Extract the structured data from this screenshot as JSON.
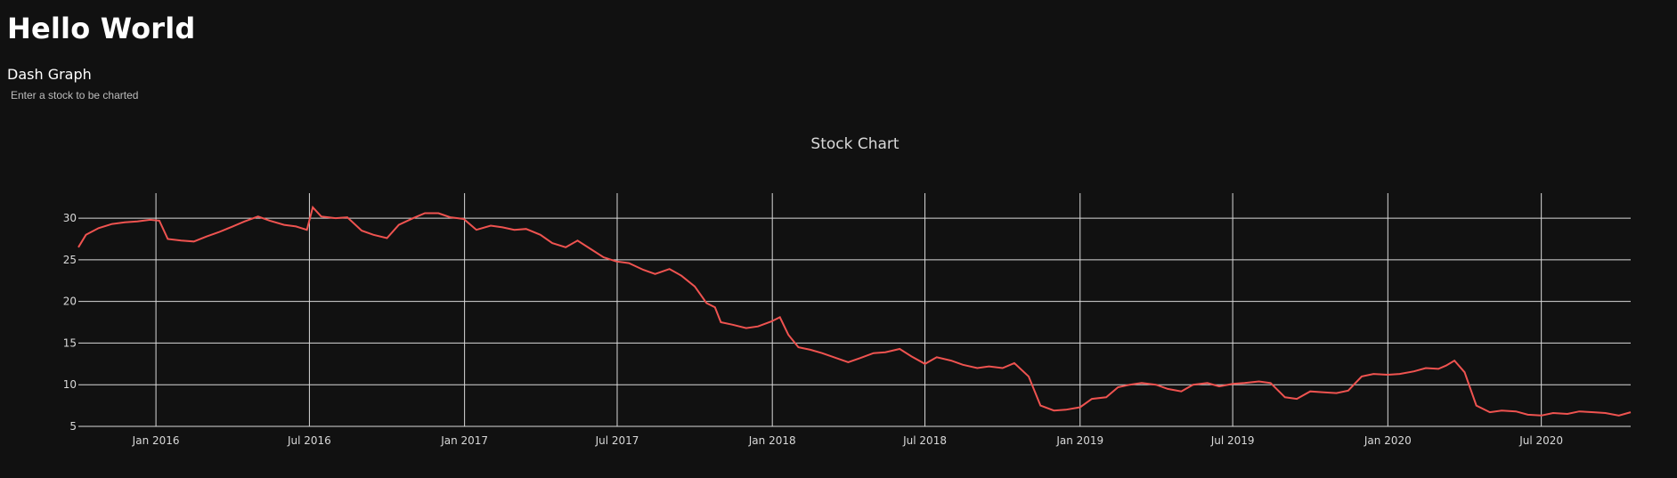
{
  "header": {
    "title": "Hello World",
    "subtitle": "Dash Graph",
    "hint": "Enter a stock to be charted"
  },
  "colors": {
    "background": "#111111",
    "grid": "#d9d9d9",
    "text": "#d9d9d9",
    "line": "#ef5350"
  },
  "chart_data": {
    "type": "line",
    "title": "Stock Chart",
    "xlabel": "",
    "ylabel": "",
    "xlim": [
      "2015-10-01",
      "2020-10-15"
    ],
    "ylim": [
      5,
      33
    ],
    "grid": true,
    "legend": "none",
    "y_ticks": [
      5,
      10,
      15,
      20,
      25,
      30
    ],
    "x_ticks": [
      {
        "date": "2016-01-01",
        "label": "Jan 2016"
      },
      {
        "date": "2016-07-01",
        "label": "Jul 2016"
      },
      {
        "date": "2017-01-01",
        "label": "Jan 2017"
      },
      {
        "date": "2017-07-01",
        "label": "Jul 2017"
      },
      {
        "date": "2018-01-01",
        "label": "Jan 2018"
      },
      {
        "date": "2018-07-01",
        "label": "Jul 2018"
      },
      {
        "date": "2019-01-01",
        "label": "Jan 2019"
      },
      {
        "date": "2019-07-01",
        "label": "Jul 2019"
      },
      {
        "date": "2020-01-01",
        "label": "Jan 2020"
      },
      {
        "date": "2020-07-01",
        "label": "Jul 2020"
      }
    ],
    "series": [
      {
        "x": [
          "2015-10-01",
          "2015-10-10",
          "2015-10-25",
          "2015-11-10",
          "2015-11-25",
          "2015-12-10",
          "2015-12-25",
          "2016-01-05",
          "2016-01-15",
          "2016-01-31",
          "2016-02-15",
          "2016-03-01",
          "2016-03-15",
          "2016-04-01",
          "2016-04-15",
          "2016-05-01",
          "2016-05-15",
          "2016-06-01",
          "2016-06-15",
          "2016-06-28",
          "2016-07-05",
          "2016-07-15",
          "2016-08-01",
          "2016-08-15",
          "2016-09-01",
          "2016-09-15",
          "2016-10-01",
          "2016-10-15",
          "2016-11-01",
          "2016-11-15",
          "2016-12-01",
          "2016-12-15",
          "2016-12-31",
          "2017-01-15",
          "2017-02-01",
          "2017-02-15",
          "2017-03-01",
          "2017-03-15",
          "2017-04-01",
          "2017-04-15",
          "2017-05-01",
          "2017-05-15",
          "2017-06-01",
          "2017-06-15",
          "2017-06-30",
          "2017-07-15",
          "2017-08-01",
          "2017-08-15",
          "2017-09-01",
          "2017-09-15",
          "2017-10-01",
          "2017-10-15",
          "2017-10-25",
          "2017-11-01",
          "2017-11-15",
          "2017-12-01",
          "2017-12-15",
          "2017-12-31",
          "2018-01-10",
          "2018-01-20",
          "2018-02-01",
          "2018-02-15",
          "2018-03-01",
          "2018-03-15",
          "2018-04-01",
          "2018-04-15",
          "2018-05-01",
          "2018-05-15",
          "2018-06-01",
          "2018-06-15",
          "2018-07-01",
          "2018-07-15",
          "2018-08-01",
          "2018-08-15",
          "2018-09-01",
          "2018-09-15",
          "2018-10-01",
          "2018-10-15",
          "2018-11-01",
          "2018-11-15",
          "2018-12-01",
          "2018-12-15",
          "2019-01-01",
          "2019-01-15",
          "2019-02-01",
          "2019-02-15",
          "2019-03-01",
          "2019-03-15",
          "2019-04-01",
          "2019-04-15",
          "2019-05-01",
          "2019-05-15",
          "2019-06-01",
          "2019-06-15",
          "2019-07-01",
          "2019-07-15",
          "2019-08-01",
          "2019-08-15",
          "2019-09-01",
          "2019-09-15",
          "2019-10-01",
          "2019-10-15",
          "2019-11-01",
          "2019-11-15",
          "2019-12-01",
          "2019-12-15",
          "2020-01-01",
          "2020-01-15",
          "2020-02-01",
          "2020-02-15",
          "2020-03-01",
          "2020-03-10",
          "2020-03-20",
          "2020-04-01",
          "2020-04-15",
          "2020-05-01",
          "2020-05-15",
          "2020-06-01",
          "2020-06-15",
          "2020-07-01",
          "2020-07-15",
          "2020-08-01",
          "2020-08-15",
          "2020-09-01",
          "2020-09-15",
          "2020-10-01",
          "2020-10-15"
        ],
        "y": [
          26.5,
          28,
          28.8,
          29.3,
          29.5,
          29.6,
          29.8,
          29.7,
          27.5,
          27.3,
          27.2,
          27.8,
          28.3,
          29.0,
          29.6,
          30.2,
          29.7,
          29.2,
          29.0,
          28.6,
          31.3,
          30.2,
          30.0,
          30.1,
          28.5,
          28.0,
          27.6,
          29.2,
          30.0,
          30.6,
          30.6,
          30.1,
          29.9,
          28.6,
          29.1,
          28.9,
          28.6,
          28.7,
          28.0,
          27.0,
          26.5,
          27.3,
          26.2,
          25.3,
          24.8,
          24.6,
          23.8,
          23.3,
          23.9,
          23.1,
          21.8,
          19.8,
          19.3,
          17.5,
          17.2,
          16.8,
          17.0,
          17.6,
          18.1,
          16.0,
          14.5,
          14.2,
          13.8,
          13.3,
          12.7,
          13.2,
          13.8,
          13.9,
          14.3,
          13.4,
          12.5,
          13.3,
          12.9,
          12.4,
          12.0,
          12.2,
          12.0,
          12.6,
          11.0,
          7.5,
          6.9,
          7.0,
          7.3,
          8.3,
          8.5,
          9.7,
          10.0,
          10.2,
          10.0,
          9.5,
          9.2,
          10.0,
          10.2,
          9.8,
          10.1,
          10.2,
          10.4,
          10.2,
          8.5,
          8.3,
          9.2,
          9.1,
          9.0,
          9.3,
          11.0,
          11.3,
          11.2,
          11.3,
          11.6,
          12.0,
          11.9,
          12.3,
          12.9,
          11.5,
          7.5,
          6.7,
          6.9,
          6.8,
          6.4,
          6.3,
          6.6,
          6.5,
          6.8,
          6.7,
          6.6,
          6.3,
          6.7
        ]
      }
    ]
  }
}
